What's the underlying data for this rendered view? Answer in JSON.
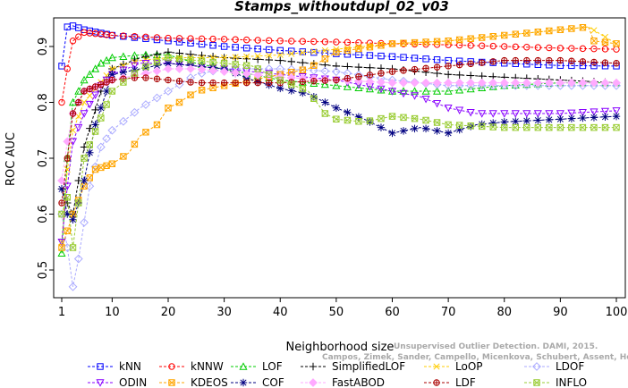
{
  "chart_data": {
    "type": "line",
    "title": "Stamps_withoutdupl_02_v03",
    "xlabel": "Neighborhood size",
    "ylabel": "ROC AUC",
    "xlim": [
      1,
      100
    ],
    "ylim": [
      0.43,
      0.97
    ],
    "x_ticks": [
      1,
      10,
      20,
      30,
      40,
      50,
      60,
      70,
      80,
      90,
      100
    ],
    "y_ticks": [
      0.5,
      0.6,
      0.7,
      0.8,
      0.9
    ],
    "grid": false,
    "legend_position": "bottom",
    "watermark": {
      "line1": "Unsupervised Outlier Detection. DAMI, 2015.",
      "line2": "Campos, Zimek, Sander, Campello, Micenkova, Schubert, Assent, Houle"
    },
    "series": [
      {
        "name": "kNN",
        "color": "#0000ff",
        "marker": "square",
        "points": [
          [
            1,
            0.865
          ],
          [
            2,
            0.935
          ],
          [
            3,
            0.937
          ],
          [
            5,
            0.93
          ],
          [
            10,
            0.92
          ],
          [
            20,
            0.91
          ],
          [
            30,
            0.9
          ],
          [
            40,
            0.893
          ],
          [
            50,
            0.887
          ],
          [
            60,
            0.882
          ],
          [
            70,
            0.875
          ],
          [
            80,
            0.87
          ],
          [
            90,
            0.866
          ],
          [
            100,
            0.865
          ]
        ]
      },
      {
        "name": "kNNW",
        "color": "#ff0000",
        "marker": "circle",
        "points": [
          [
            1,
            0.8
          ],
          [
            2,
            0.86
          ],
          [
            3,
            0.91
          ],
          [
            5,
            0.925
          ],
          [
            10,
            0.92
          ],
          [
            20,
            0.915
          ],
          [
            30,
            0.913
          ],
          [
            40,
            0.91
          ],
          [
            50,
            0.908
          ],
          [
            60,
            0.905
          ],
          [
            70,
            0.903
          ],
          [
            80,
            0.9
          ],
          [
            90,
            0.897
          ],
          [
            100,
            0.895
          ]
        ]
      },
      {
        "name": "LOF",
        "color": "#00cc00",
        "marker": "triangle-up",
        "points": [
          [
            1,
            0.53
          ],
          [
            2,
            0.7
          ],
          [
            3,
            0.8
          ],
          [
            5,
            0.84
          ],
          [
            8,
            0.87
          ],
          [
            10,
            0.88
          ],
          [
            15,
            0.885
          ],
          [
            20,
            0.885
          ],
          [
            25,
            0.87
          ],
          [
            30,
            0.86
          ],
          [
            40,
            0.84
          ],
          [
            50,
            0.83
          ],
          [
            60,
            0.82
          ],
          [
            70,
            0.82
          ],
          [
            80,
            0.83
          ],
          [
            90,
            0.835
          ],
          [
            100,
            0.835
          ]
        ]
      },
      {
        "name": "SimplifiedLOF",
        "color": "#000000",
        "marker": "plus",
        "points": [
          [
            1,
            0.645
          ],
          [
            2,
            0.62
          ],
          [
            3,
            0.6
          ],
          [
            5,
            0.72
          ],
          [
            8,
            0.82
          ],
          [
            10,
            0.86
          ],
          [
            15,
            0.88
          ],
          [
            20,
            0.89
          ],
          [
            25,
            0.885
          ],
          [
            30,
            0.88
          ],
          [
            40,
            0.875
          ],
          [
            50,
            0.865
          ],
          [
            60,
            0.86
          ],
          [
            70,
            0.85
          ],
          [
            80,
            0.845
          ],
          [
            90,
            0.84
          ],
          [
            100,
            0.835
          ]
        ]
      },
      {
        "name": "LoOP",
        "color": "#ffcc00",
        "marker": "x",
        "points": [
          [
            1,
            0.55
          ],
          [
            2,
            0.68
          ],
          [
            3,
            0.75
          ],
          [
            5,
            0.8
          ],
          [
            10,
            0.86
          ],
          [
            15,
            0.875
          ],
          [
            20,
            0.88
          ],
          [
            25,
            0.88
          ],
          [
            30,
            0.88
          ],
          [
            40,
            0.885
          ],
          [
            50,
            0.895
          ],
          [
            60,
            0.905
          ],
          [
            70,
            0.91
          ],
          [
            80,
            0.92
          ],
          [
            90,
            0.93
          ],
          [
            95,
            0.935
          ],
          [
            100,
            0.905
          ]
        ]
      },
      {
        "name": "LDOF",
        "color": "#aaaaff",
        "marker": "diamond",
        "points": [
          [
            1,
            0.6
          ],
          [
            2,
            0.54
          ],
          [
            3,
            0.47
          ],
          [
            4,
            0.52
          ],
          [
            6,
            0.65
          ],
          [
            8,
            0.72
          ],
          [
            10,
            0.75
          ],
          [
            15,
            0.79
          ],
          [
            20,
            0.82
          ],
          [
            25,
            0.85
          ],
          [
            30,
            0.86
          ],
          [
            40,
            0.86
          ],
          [
            50,
            0.855
          ],
          [
            60,
            0.84
          ],
          [
            70,
            0.83
          ],
          [
            80,
            0.83
          ],
          [
            90,
            0.83
          ],
          [
            100,
            0.83
          ]
        ]
      },
      {
        "name": "ODIN",
        "color": "#8800ff",
        "marker": "triangle-down",
        "points": [
          [
            1,
            0.55
          ],
          [
            2,
            0.65
          ],
          [
            3,
            0.73
          ],
          [
            5,
            0.78
          ],
          [
            8,
            0.83
          ],
          [
            10,
            0.85
          ],
          [
            15,
            0.87
          ],
          [
            20,
            0.87
          ],
          [
            30,
            0.86
          ],
          [
            40,
            0.85
          ],
          [
            50,
            0.84
          ],
          [
            60,
            0.82
          ],
          [
            65,
            0.81
          ],
          [
            70,
            0.79
          ],
          [
            75,
            0.78
          ],
          [
            80,
            0.78
          ],
          [
            90,
            0.78
          ],
          [
            100,
            0.785
          ]
        ]
      },
      {
        "name": "KDEOS",
        "color": "#ffa500",
        "marker": "square-x",
        "points": [
          [
            1,
            0.54
          ],
          [
            3,
            0.6
          ],
          [
            5,
            0.65
          ],
          [
            7,
            0.68
          ],
          [
            10,
            0.69
          ],
          [
            13,
            0.71
          ],
          [
            15,
            0.74
          ],
          [
            18,
            0.76
          ],
          [
            20,
            0.79
          ],
          [
            22,
            0.8
          ],
          [
            25,
            0.82
          ],
          [
            30,
            0.83
          ],
          [
            40,
            0.85
          ],
          [
            45,
            0.86
          ],
          [
            50,
            0.89
          ],
          [
            60,
            0.905
          ],
          [
            70,
            0.91
          ],
          [
            80,
            0.92
          ],
          [
            90,
            0.93
          ],
          [
            95,
            0.935
          ],
          [
            96,
            0.91
          ],
          [
            100,
            0.905
          ]
        ]
      },
      {
        "name": "COF",
        "color": "#000080",
        "marker": "asterisk",
        "points": [
          [
            1,
            0.645
          ],
          [
            2,
            0.6
          ],
          [
            3,
            0.59
          ],
          [
            4,
            0.62
          ],
          [
            5,
            0.66
          ],
          [
            7,
            0.76
          ],
          [
            10,
            0.85
          ],
          [
            15,
            0.86
          ],
          [
            20,
            0.87
          ],
          [
            30,
            0.86
          ],
          [
            35,
            0.84
          ],
          [
            40,
            0.825
          ],
          [
            45,
            0.815
          ],
          [
            50,
            0.79
          ],
          [
            55,
            0.77
          ],
          [
            60,
            0.745
          ],
          [
            65,
            0.755
          ],
          [
            70,
            0.745
          ],
          [
            75,
            0.76
          ],
          [
            80,
            0.765
          ],
          [
            90,
            0.77
          ],
          [
            100,
            0.775
          ]
        ]
      },
      {
        "name": "FastABOD",
        "color": "#ffaaff",
        "marker": "diamond-filled",
        "points": [
          [
            1,
            0.66
          ],
          [
            2,
            0.73
          ],
          [
            3,
            0.78
          ],
          [
            5,
            0.82
          ],
          [
            10,
            0.84
          ],
          [
            15,
            0.85
          ],
          [
            20,
            0.86
          ],
          [
            25,
            0.86
          ],
          [
            30,
            0.855
          ],
          [
            40,
            0.845
          ],
          [
            50,
            0.84
          ],
          [
            60,
            0.835
          ],
          [
            70,
            0.835
          ],
          [
            80,
            0.835
          ],
          [
            90,
            0.835
          ],
          [
            100,
            0.835
          ]
        ]
      },
      {
        "name": "LDF",
        "color": "#aa0000",
        "marker": "circle-plus",
        "points": [
          [
            1,
            0.62
          ],
          [
            2,
            0.7
          ],
          [
            3,
            0.78
          ],
          [
            5,
            0.82
          ],
          [
            10,
            0.84
          ],
          [
            15,
            0.845
          ],
          [
            20,
            0.84
          ],
          [
            25,
            0.835
          ],
          [
            30,
            0.835
          ],
          [
            40,
            0.835
          ],
          [
            50,
            0.84
          ],
          [
            60,
            0.855
          ],
          [
            70,
            0.865
          ],
          [
            80,
            0.875
          ],
          [
            90,
            0.875
          ],
          [
            100,
            0.87
          ]
        ]
      },
      {
        "name": "INFLO",
        "color": "#99cc33",
        "marker": "square-x",
        "points": [
          [
            1,
            0.6
          ],
          [
            2,
            0.63
          ],
          [
            3,
            0.54
          ],
          [
            5,
            0.7
          ],
          [
            10,
            0.82
          ],
          [
            15,
            0.86
          ],
          [
            20,
            0.88
          ],
          [
            25,
            0.875
          ],
          [
            30,
            0.87
          ],
          [
            35,
            0.865
          ],
          [
            40,
            0.84
          ],
          [
            45,
            0.82
          ],
          [
            48,
            0.78
          ],
          [
            50,
            0.77
          ],
          [
            55,
            0.765
          ],
          [
            60,
            0.775
          ],
          [
            65,
            0.77
          ],
          [
            70,
            0.76
          ],
          [
            80,
            0.755
          ],
          [
            90,
            0.755
          ],
          [
            100,
            0.755
          ]
        ]
      }
    ]
  }
}
